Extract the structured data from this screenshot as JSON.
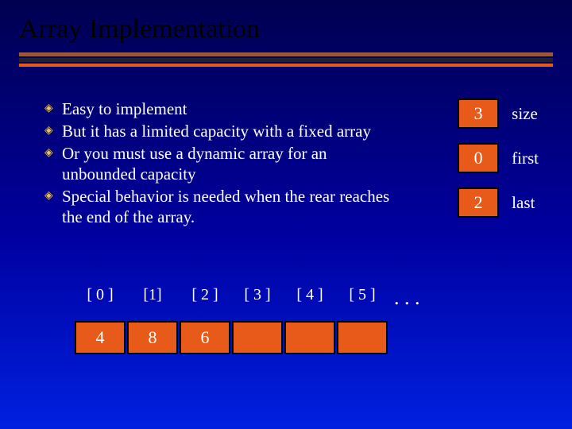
{
  "title": "Array Implementation",
  "bullets": [
    "Easy to implement",
    "But it has a limited capacity with a fixed array",
    "Or you must use a dynamic array for an unbounded capacity",
    "Special behavior is needed when the rear reaches the end of the array."
  ],
  "side": [
    {
      "value": "3",
      "label": "size"
    },
    {
      "value": "0",
      "label": "first"
    },
    {
      "value": "2",
      "label": "last"
    }
  ],
  "array": {
    "indices": [
      "[ 0 ]",
      "[1]",
      "[ 2 ]",
      "[ 3 ]",
      "[ 4 ]",
      "[ 5 ]"
    ],
    "values": [
      "4",
      "8",
      "6",
      "",
      "",
      ""
    ],
    "ellipsis": ". . ."
  },
  "colors": {
    "box_bg": "#e85a1a",
    "box_border": "#000000",
    "bullet_marker": "#e8c060",
    "hr1": "#9a5a3a",
    "hr2": "#222222",
    "hr3": "#e85a1a"
  }
}
